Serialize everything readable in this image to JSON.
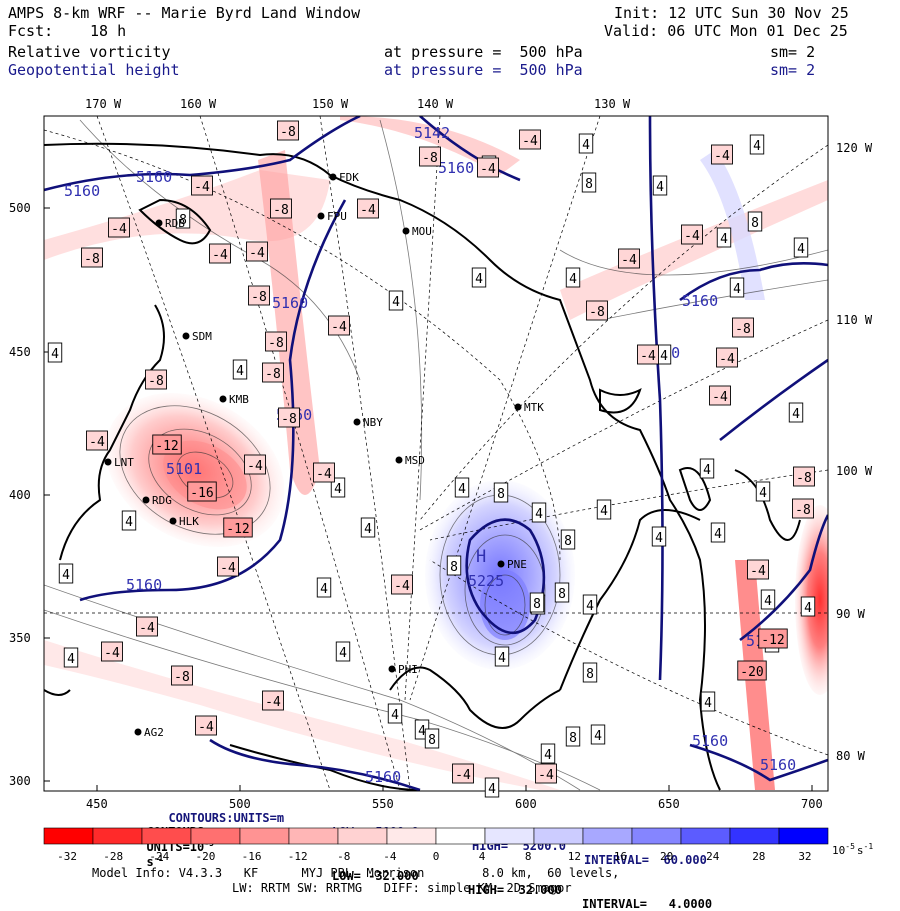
{
  "header": {
    "title": "AMPS 8-km WRF -- Marie Byrd Land Window",
    "init": "Init: 12 UTC Sun 30 Nov 25",
    "fcst_label": "Fcst:",
    "fcst_value": "18 h",
    "valid": "Valid: 06 UTC Mon 01 Dec 25",
    "field1": "Relative vorticity",
    "field1_level": "at pressure =  500 hPa",
    "field1_sm": "sm= 2",
    "field2": "Geopotential height",
    "field2_level": "at pressure =  500 hPa",
    "field2_sm": "sm= 2"
  },
  "axes": {
    "top_lon": [
      "170 W",
      "160 W",
      "150 W",
      "140 W",
      "130 W"
    ],
    "right_lon": [
      "120 W",
      "110 W",
      "100 W",
      "90 W",
      "80 W"
    ],
    "left_ticks": [
      "500",
      "450",
      "400",
      "350",
      "300"
    ],
    "bottom_ticks": [
      "450",
      "500",
      "550",
      "600",
      "650",
      "700"
    ]
  },
  "stations": [
    {
      "id": "FDK"
    },
    {
      "id": "FPU"
    },
    {
      "id": "MOU"
    },
    {
      "id": "RDB"
    },
    {
      "id": "SDM"
    },
    {
      "id": "KMB"
    },
    {
      "id": "NBY"
    },
    {
      "id": "MTK"
    },
    {
      "id": "MSD"
    },
    {
      "id": "LNT"
    },
    {
      "id": "RDG"
    },
    {
      "id": "HLK"
    },
    {
      "id": "PNE"
    },
    {
      "id": "PHI"
    },
    {
      "id": "AG2"
    }
  ],
  "height_labels": [
    "5160",
    "5160",
    "5160",
    "5160",
    "5160",
    "5160",
    "5160",
    "5101",
    "5142",
    "5160",
    "5160",
    "5160",
    "5160",
    "5225",
    "5160",
    "H"
  ],
  "vort_labels": {
    "pos": [
      "4",
      "8"
    ],
    "neg": [
      "-4",
      "-8",
      "-12",
      "-16",
      "-20"
    ]
  },
  "contours_height": {
    "label": "CONTOURS:",
    "units": "UNITS=m",
    "low": "LOW=  5000.0",
    "high": "HIGH=  5200.0",
    "interval": "INTERVAL=  60.000"
  },
  "contours_vort": {
    "label": "CONTOURS:",
    "units": "UNITS=10",
    "units_exp": "-5",
    "units_tail": "s",
    "units_tail_exp": "-1",
    "low": "LOW= -32.000",
    "high": "HIGH=  32.000",
    "interval": "INTERVAL=   4.0000"
  },
  "colorbar": {
    "labels": [
      "-32",
      "-28",
      "-24",
      "-20",
      "-16",
      "-12",
      "-8",
      "-4",
      "0",
      "4",
      "8",
      "12",
      "16",
      "20",
      "24",
      "28",
      "32"
    ],
    "units": "10",
    "units_exp": "-5",
    "units_tail": "s",
    "units_tail_exp": "-1",
    "colors": [
      "#ff0000",
      "#ff2a2a",
      "#ff4d4d",
      "#ff7070",
      "#ff9393",
      "#ffb6b6",
      "#ffd2d2",
      "#ffe9e9",
      "#ffffff",
      "#ffffff",
      "#e6e6ff",
      "#ccccff",
      "#a8a8ff",
      "#8585ff",
      "#5c5cff",
      "#3333ff",
      "#0000ff"
    ]
  },
  "footer": {
    "model_info": "Model Info: V4.3.3   KF      MYJ PBL  Morrison        8.0 km,  60 levels,",
    "model_info2": "LW: RRTM SW: RRTMG   DIFF: simple KM: 2D Smagor"
  }
}
